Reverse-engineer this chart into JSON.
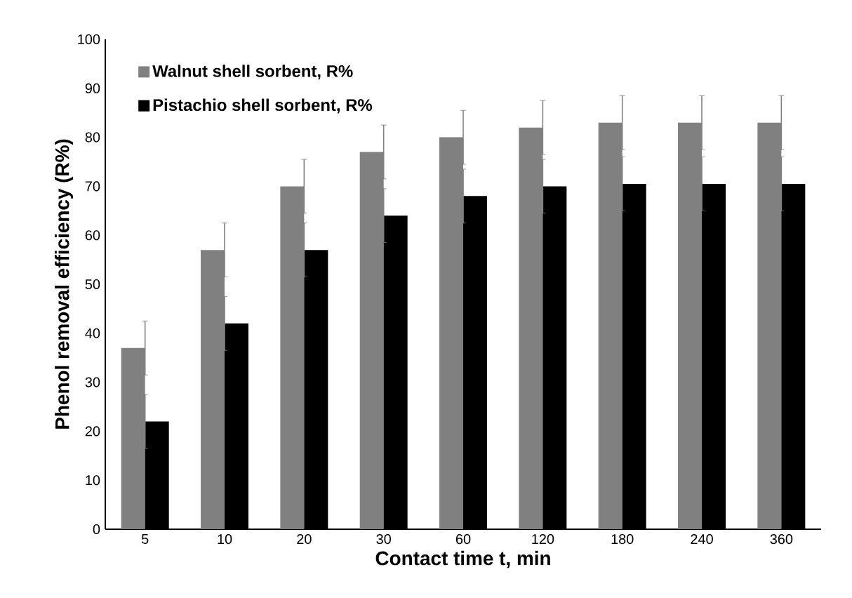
{
  "chart_data": {
    "type": "bar",
    "xlabel": "Contact time t, min",
    "ylabel": "Phenol removal efficiency (R%)",
    "categories": [
      "5",
      "10",
      "20",
      "30",
      "60",
      "120",
      "180",
      "240",
      "360"
    ],
    "series": [
      {
        "name": "Walnut shell sorbent, R%",
        "color": "#808080",
        "values": [
          37,
          57,
          70,
          77,
          80,
          82,
          83,
          83,
          83
        ],
        "errors": [
          5.5,
          5.5,
          5.5,
          5.5,
          5.5,
          5.5,
          5.5,
          5.5,
          5.5
        ]
      },
      {
        "name": "Pistachio shell sorbent, R%",
        "color": "#000000",
        "values": [
          22,
          42,
          57,
          64,
          68,
          70,
          70.5,
          70.5,
          70.5
        ],
        "errors": [
          5.5,
          5.5,
          5.5,
          5.5,
          5.5,
          5.5,
          5.5,
          5.5,
          5.5
        ]
      }
    ],
    "ylim": [
      0,
      100
    ],
    "yticks": [
      0,
      10,
      20,
      30,
      40,
      50,
      60,
      70,
      80,
      90,
      100
    ],
    "grid": false,
    "legend": "top left"
  }
}
